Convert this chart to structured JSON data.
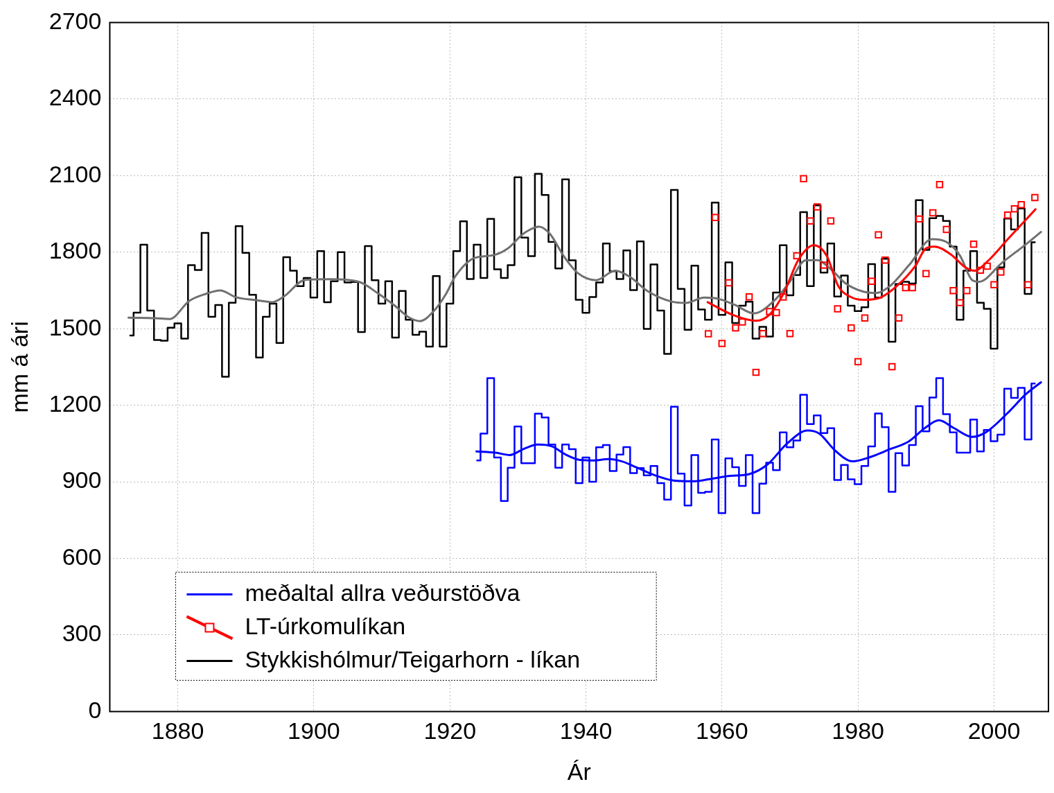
{
  "chart_data": {
    "type": "line",
    "xlabel": "Ár",
    "ylabel": "mm á ári",
    "xlim": [
      1870,
      2008
    ],
    "xticks": [
      1880,
      1900,
      1920,
      1940,
      1960,
      1980,
      2000
    ],
    "ylim": [
      0,
      2700
    ],
    "yticks": [
      0,
      300,
      600,
      900,
      1200,
      1500,
      1800,
      2100,
      2400,
      2700
    ],
    "grid": true,
    "legend": "bottom left",
    "series": [
      {
        "type": "step",
        "name": "meðaltal allra veðurstöðva",
        "color": "#0000ff",
        "x": [
          1924,
          1925,
          1926,
          1927,
          1928,
          1929,
          1930,
          1931,
          1932,
          1933,
          1934,
          1935,
          1936,
          1937,
          1938,
          1939,
          1940,
          1941,
          1942,
          1943,
          1944,
          1945,
          1946,
          1947,
          1948,
          1949,
          1950,
          1951,
          1952,
          1953,
          1954,
          1955,
          1956,
          1957,
          1958,
          1959,
          1960,
          1961,
          1962,
          1963,
          1964,
          1965,
          1966,
          1967,
          1968,
          1969,
          1970,
          1971,
          1972,
          1973,
          1974,
          1975,
          1976,
          1977,
          1978,
          1979,
          1980,
          1981,
          1982,
          1983,
          1984,
          1985,
          1986,
          1987,
          1988,
          1989,
          1990,
          1991,
          1992,
          1993,
          1994,
          1995,
          1996,
          1997,
          1998,
          1999,
          2000,
          2001,
          2002,
          2003,
          2004,
          2005,
          2006
        ],
        "values": [
          984,
          1089,
          1306,
          995,
          825,
          955,
          1117,
          973,
          973,
          1167,
          1152,
          1046,
          955,
          1046,
          1028,
          895,
          995,
          900,
          1035,
          1044,
          942,
          1007,
          1036,
          934,
          954,
          925,
          962,
          895,
          830,
          1194,
          932,
          807,
          1005,
          857,
          861,
          1066,
          777,
          992,
          957,
          884,
          1005,
          777,
          893,
          975,
          946,
          1094,
          1035,
          1062,
          1241,
          1126,
          1160,
          1091,
          1110,
          907,
          966,
          910,
          891,
          962,
          1039,
          1168,
          1114,
          861,
          1012,
          964,
          1044,
          1196,
          1098,
          1230,
          1306,
          1165,
          1094,
          1014,
          1014,
          1144,
          1019,
          1103,
          1059,
          1085,
          1265,
          1229,
          1268,
          1066,
          1285
        ]
      },
      {
        "type": "line",
        "color": "#0000ff",
        "x": [
          1923.9,
          1926.7,
          1928.8,
          1930.8,
          1932.9,
          1935,
          1937,
          1939.1,
          1941.2,
          1943.3,
          1945.3,
          1947.4,
          1950.2,
          1952.9,
          1955.7,
          1958.5,
          1961.2,
          1964,
          1966.7,
          1969.5,
          1972.6,
          1974.3,
          1976.7,
          1979.2,
          1981.9,
          1984.7,
          1987.4,
          1989.9,
          1991.9,
          1994,
          1996.8,
          1998.8,
          2001.9,
          2004.7,
          2006.9
        ],
        "values": [
          1019,
          1014,
          1005,
          1028,
          1046,
          1039,
          1007,
          986,
          984,
          989,
          980,
          957,
          925,
          905,
          902,
          912,
          923,
          930,
          968,
          1048,
          1101,
          1089,
          1021,
          980,
          998,
          1028,
          1057,
          1112,
          1141,
          1112,
          1076,
          1094,
          1167,
          1244,
          1290
        ]
      },
      {
        "type": "scatter",
        "name": "LT-úrkomulíkan",
        "color": "#ff0000",
        "marker": "square",
        "x": [
          1958,
          1959,
          1960,
          1961,
          1962,
          1963,
          1964,
          1965,
          1966,
          1967,
          1968,
          1969,
          1970,
          1971,
          1972,
          1973,
          1974,
          1975,
          1976,
          1977,
          1979,
          1980,
          1981,
          1982,
          1983,
          1984,
          1985,
          1986,
          1987,
          1988,
          1989,
          1990,
          1991,
          1992,
          1993,
          1994,
          1995,
          1996,
          1997,
          1998,
          1999,
          2000,
          2001,
          2002,
          2003,
          2004,
          2005,
          2006
        ],
        "values": [
          1480,
          1936,
          1442,
          1680,
          1503,
          1526,
          1625,
          1329,
          1481,
          1567,
          1563,
          1624,
          1481,
          1786,
          2088,
          1922,
          1977,
          1749,
          1922,
          1578,
          1503,
          1371,
          1542,
          1686,
          1868,
          1769,
          1351,
          1542,
          1661,
          1661,
          1930,
          1716,
          1954,
          2065,
          1889,
          1649,
          1602,
          1649,
          1831,
          1729,
          1745,
          1672,
          1722,
          1945,
          1970,
          1986,
          1672,
          2014
        ]
      },
      {
        "type": "line",
        "color": "#ff0000",
        "x": [
          1957.9,
          1961.6,
          1965,
          1967.1,
          1969.1,
          1971.2,
          1973.5,
          1975.4,
          1977.1,
          1978.8,
          1980.8,
          1983.3,
          1985.7,
          1988.5,
          1989.9,
          1991.2,
          1993.7,
          1995.8,
          1997.1,
          1999.2,
          2002,
          2006.1
        ],
        "values": [
          1604,
          1554,
          1531,
          1558,
          1640,
          1768,
          1827,
          1786,
          1667,
          1626,
          1613,
          1622,
          1667,
          1749,
          1813,
          1822,
          1790,
          1740,
          1727,
          1768,
          1850,
          1968
        ]
      },
      {
        "type": "step",
        "name": "Stykkishólmur/Teigarhorn - líkan",
        "color": "#000000",
        "x": [
          1873,
          1874,
          1875,
          1876,
          1877,
          1878,
          1879,
          1880,
          1881,
          1882,
          1883,
          1884,
          1885,
          1886,
          1887,
          1888,
          1889,
          1890,
          1891,
          1892,
          1893,
          1894,
          1895,
          1896,
          1897,
          1898,
          1899,
          1900,
          1901,
          1902,
          1903,
          1904,
          1905,
          1906,
          1907,
          1908,
          1909,
          1910,
          1911,
          1912,
          1913,
          1914,
          1915,
          1916,
          1917,
          1918,
          1919,
          1920,
          1921,
          1922,
          1923,
          1924,
          1925,
          1926,
          1927,
          1928,
          1929,
          1930,
          1931,
          1932,
          1933,
          1934,
          1935,
          1936,
          1937,
          1938,
          1939,
          1940,
          1941,
          1942,
          1943,
          1944,
          1945,
          1946,
          1947,
          1948,
          1949,
          1950,
          1951,
          1952,
          1953,
          1954,
          1955,
          1956,
          1957,
          1958,
          1959,
          1960,
          1961,
          1962,
          1963,
          1964,
          1965,
          1966,
          1967,
          1968,
          1969,
          1970,
          1971,
          1972,
          1973,
          1974,
          1975,
          1976,
          1977,
          1978,
          1979,
          1980,
          1981,
          1982,
          1983,
          1984,
          1985,
          1986,
          1987,
          1988,
          1989,
          1990,
          1991,
          1992,
          1993,
          1994,
          1995,
          1996,
          1997,
          1998,
          1999,
          2000,
          2001,
          2002,
          2003,
          2004,
          2005,
          2006
        ],
        "values": [
          1473,
          1563,
          1829,
          1571,
          1456,
          1453,
          1504,
          1521,
          1461,
          1749,
          1730,
          1875,
          1547,
          1593,
          1312,
          1602,
          1902,
          1797,
          1633,
          1387,
          1547,
          1598,
          1444,
          1780,
          1727,
          1667,
          1699,
          1622,
          1804,
          1604,
          1686,
          1800,
          1681,
          1683,
          1487,
          1824,
          1690,
          1598,
          1686,
          1465,
          1648,
          1535,
          1476,
          1488,
          1430,
          1706,
          1430,
          1598,
          1804,
          1921,
          1695,
          1829,
          1699,
          1930,
          1733,
          1699,
          1749,
          2093,
          1857,
          1784,
          2107,
          2024,
          1840,
          1736,
          2085,
          1768,
          1613,
          1562,
          1624,
          1681,
          1834,
          1725,
          1695,
          1807,
          1651,
          1842,
          1499,
          1752,
          1571,
          1401,
          2044,
          1656,
          1496,
          1747,
          1575,
          1535,
          1994,
          1554,
          1760,
          1522,
          1590,
          1606,
          1461,
          1507,
          1469,
          1642,
          1827,
          1631,
          1710,
          1957,
          1667,
          1983,
          1720,
          1834,
          1626,
          1708,
          1590,
          1569,
          1584,
          1753,
          1622,
          1774,
          1449,
          1675,
          1684,
          1677,
          2004,
          1809,
          1933,
          1942,
          1922,
          1822,
          1535,
          1727,
          1804,
          1602,
          1578,
          1422,
          1740,
          1932,
          1889,
          1971,
          1636,
          1839
        ]
      },
      {
        "type": "line",
        "color": "#707070",
        "x": [
          1872.75,
          1876.7,
          1878.8,
          1881.7,
          1884.2,
          1886.2,
          1888.6,
          1891.5,
          1893.9,
          1895.6,
          1898.7,
          1902.6,
          1906.7,
          1909.4,
          1911.9,
          1914,
          1915.6,
          1917.7,
          1919.4,
          1920.8,
          1923.6,
          1926.4,
          1928.5,
          1930.8,
          1933.1,
          1934.7,
          1936.7,
          1938.8,
          1941.5,
          1944.3,
          1946.4,
          1949.2,
          1952.6,
          1954.7,
          1957.4,
          1959.5,
          1961.9,
          1964.7,
          1967.8,
          1969.9,
          1972.3,
          1974,
          1976.1,
          1978.2,
          1980.8,
          1982.6,
          1984.7,
          1987.5,
          1990.9,
          1993,
          1995,
          1996.8,
          1997.8,
          2001.2,
          2004.7,
          2006.9
        ],
        "values": [
          1543,
          1541,
          1538,
          1609,
          1637,
          1650,
          1623,
          1612,
          1604,
          1626,
          1691,
          1694,
          1683,
          1639,
          1590,
          1544,
          1530,
          1571,
          1635,
          1705,
          1777,
          1788,
          1814,
          1872,
          1900,
          1872,
          1786,
          1718,
          1690,
          1727,
          1704,
          1645,
          1606,
          1601,
          1622,
          1617,
          1593,
          1560,
          1613,
          1681,
          1768,
          1769,
          1731,
          1677,
          1645,
          1640,
          1667,
          1749,
          1851,
          1840,
          1786,
          1690,
          1684,
          1759,
          1831,
          1879
        ]
      }
    ]
  }
}
